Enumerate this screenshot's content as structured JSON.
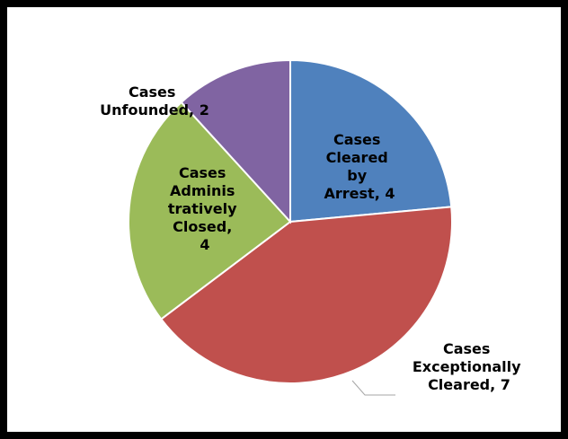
{
  "chart_data": {
    "type": "pie",
    "categories": [
      "Cases Cleared by Arrest",
      "Cases Exceptionally Cleared",
      "Cases Administratively Closed",
      "Cases Unfounded"
    ],
    "values": [
      4,
      7,
      4,
      2
    ],
    "value_labels": [
      "Cases Cleared by Arrest, 4",
      "Cases Exceptionally Cleared, 7",
      "Cases Administratively Closed, 4",
      "Cases Unfounded, 2"
    ],
    "colors": [
      "#4f81bd",
      "#c0504d",
      "#9bbb59",
      "#8064a2"
    ]
  }
}
